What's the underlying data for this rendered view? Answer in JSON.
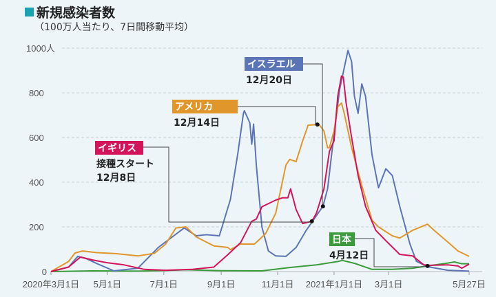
{
  "chart_data": {
    "type": "line",
    "title": "新規感染者数",
    "subtitle": "（100万人当たり、7日間移動平均）",
    "ylim": [
      0,
      1000
    ],
    "yticks": [
      "0",
      "200",
      "400",
      "600",
      "800",
      "1000人"
    ],
    "ytick_values": [
      0,
      200,
      400,
      600,
      800,
      1000
    ],
    "xlim": [
      "2020-03-01",
      "2021-05-27"
    ],
    "xticks": [
      "2020年3月1日",
      "5月1日",
      "7月1日",
      "9月1日",
      "11月1日",
      "2021年1月1日",
      "3月1日",
      "5月27日"
    ],
    "xtick_dates": [
      "2020-03-01",
      "2020-05-01",
      "2020-07-01",
      "2020-09-01",
      "2020-11-01",
      "2021-01-01",
      "2021-03-01",
      "2021-05-27"
    ],
    "grid": true,
    "series": [
      {
        "name": "イスラエル",
        "color": "#5b74b5",
        "annotation": "12月20日",
        "marker_date": "2020-12-20",
        "points": [
          [
            "2020-03-01",
            0
          ],
          [
            "2020-03-20",
            20
          ],
          [
            "2020-03-30",
            68
          ],
          [
            "2020-04-08",
            58
          ],
          [
            "2020-04-20",
            35
          ],
          [
            "2020-05-08",
            3
          ],
          [
            "2020-06-03",
            15
          ],
          [
            "2020-06-25",
            108
          ],
          [
            "2020-07-23",
            195
          ],
          [
            "2020-08-05",
            160
          ],
          [
            "2020-08-16",
            165
          ],
          [
            "2020-08-30",
            160
          ],
          [
            "2020-09-11",
            323
          ],
          [
            "2020-09-19",
            530
          ],
          [
            "2020-09-25",
            707
          ],
          [
            "2020-09-26",
            720
          ],
          [
            "2020-10-02",
            665
          ],
          [
            "2020-10-04",
            570
          ],
          [
            "2020-10-06",
            660
          ],
          [
            "2020-10-09",
            475
          ],
          [
            "2020-10-15",
            200
          ],
          [
            "2020-10-22",
            92
          ],
          [
            "2020-10-30",
            70
          ],
          [
            "2020-11-10",
            68
          ],
          [
            "2020-11-21",
            108
          ],
          [
            "2020-12-02",
            185
          ],
          [
            "2020-12-20",
            292
          ],
          [
            "2020-12-25",
            370
          ],
          [
            "2021-01-01",
            615
          ],
          [
            "2021-01-07",
            815
          ],
          [
            "2021-01-16",
            990
          ],
          [
            "2021-01-20",
            940
          ],
          [
            "2021-01-23",
            785
          ],
          [
            "2021-01-27",
            708
          ],
          [
            "2021-01-31",
            840
          ],
          [
            "2021-02-04",
            785
          ],
          [
            "2021-02-11",
            523
          ],
          [
            "2021-02-18",
            375
          ],
          [
            "2021-02-26",
            460
          ],
          [
            "2021-03-05",
            430
          ],
          [
            "2021-03-13",
            292
          ],
          [
            "2021-03-24",
            123
          ],
          [
            "2021-03-31",
            46
          ],
          [
            "2021-04-12",
            22
          ],
          [
            "2021-05-04",
            6
          ],
          [
            "2021-05-27",
            2
          ]
        ]
      },
      {
        "name": "アメリカ",
        "color": "#e0962a",
        "annotation": "12月14日",
        "marker_date": "2020-12-14",
        "points": [
          [
            "2020-03-01",
            0
          ],
          [
            "2020-03-20",
            45
          ],
          [
            "2020-03-27",
            83
          ],
          [
            "2020-04-04",
            92
          ],
          [
            "2020-04-19",
            85
          ],
          [
            "2020-05-11",
            80
          ],
          [
            "2020-06-03",
            70
          ],
          [
            "2020-06-21",
            82
          ],
          [
            "2020-07-03",
            123
          ],
          [
            "2020-07-14",
            195
          ],
          [
            "2020-07-25",
            200
          ],
          [
            "2020-08-05",
            155
          ],
          [
            "2020-08-24",
            115
          ],
          [
            "2020-09-08",
            108
          ],
          [
            "2020-09-11",
            98
          ],
          [
            "2020-09-22",
            123
          ],
          [
            "2020-10-07",
            123
          ],
          [
            "2020-10-19",
            170
          ],
          [
            "2020-10-30",
            262
          ],
          [
            "2020-11-10",
            477
          ],
          [
            "2020-11-14",
            502
          ],
          [
            "2020-11-21",
            492
          ],
          [
            "2020-11-28",
            585
          ],
          [
            "2020-12-04",
            655
          ],
          [
            "2020-12-14",
            658
          ],
          [
            "2020-12-15",
            662
          ],
          [
            "2020-12-21",
            630
          ],
          [
            "2020-12-25",
            554
          ],
          [
            "2020-12-27",
            554
          ],
          [
            "2021-01-01",
            630
          ],
          [
            "2021-01-05",
            738
          ],
          [
            "2021-01-09",
            754
          ],
          [
            "2021-01-12",
            708
          ],
          [
            "2021-01-20",
            554
          ],
          [
            "2021-01-31",
            385
          ],
          [
            "2021-02-11",
            230
          ],
          [
            "2021-02-18",
            200
          ],
          [
            "2021-03-05",
            160
          ],
          [
            "2021-03-13",
            150
          ],
          [
            "2021-03-27",
            185
          ],
          [
            "2021-04-12",
            212
          ],
          [
            "2021-04-19",
            185
          ],
          [
            "2021-05-04",
            132
          ],
          [
            "2021-05-15",
            92
          ],
          [
            "2021-05-27",
            68
          ]
        ]
      },
      {
        "name": "イギリス",
        "color": "#d4145a",
        "annotation": "接種スタート\n12月8日",
        "annotation_lines": [
          "接種スタート",
          "12月8日"
        ],
        "marker_date": "2020-12-08",
        "points": [
          [
            "2020-03-01",
            0
          ],
          [
            "2020-03-20",
            20
          ],
          [
            "2020-03-30",
            55
          ],
          [
            "2020-04-02",
            65
          ],
          [
            "2020-04-15",
            52
          ],
          [
            "2020-04-30",
            40
          ],
          [
            "2020-05-19",
            30
          ],
          [
            "2020-06-10",
            10
          ],
          [
            "2020-07-03",
            6
          ],
          [
            "2020-08-01",
            10
          ],
          [
            "2020-08-24",
            20
          ],
          [
            "2020-09-08",
            75
          ],
          [
            "2020-09-22",
            130
          ],
          [
            "2020-10-04",
            225
          ],
          [
            "2020-10-09",
            235
          ],
          [
            "2020-10-15",
            290
          ],
          [
            "2020-10-30",
            320
          ],
          [
            "2020-11-06",
            330
          ],
          [
            "2020-11-12",
            330
          ],
          [
            "2020-11-15",
            370
          ],
          [
            "2020-11-21",
            277
          ],
          [
            "2020-11-28",
            215
          ],
          [
            "2020-12-08",
            225
          ],
          [
            "2020-12-13",
            262
          ],
          [
            "2020-12-21",
            370
          ],
          [
            "2020-12-27",
            538
          ],
          [
            "2021-01-01",
            585
          ],
          [
            "2021-01-05",
            785
          ],
          [
            "2021-01-09",
            875
          ],
          [
            "2021-01-11",
            870
          ],
          [
            "2021-01-14",
            755
          ],
          [
            "2021-01-20",
            600
          ],
          [
            "2021-01-27",
            430
          ],
          [
            "2021-02-04",
            292
          ],
          [
            "2021-02-15",
            185
          ],
          [
            "2021-02-26",
            138
          ],
          [
            "2021-03-13",
            77
          ],
          [
            "2021-03-27",
            70
          ],
          [
            "2021-04-08",
            30
          ],
          [
            "2021-04-15",
            28
          ],
          [
            "2021-05-04",
            30
          ],
          [
            "2021-05-15",
            25
          ],
          [
            "2021-05-19",
            15
          ],
          [
            "2021-05-27",
            33
          ]
        ]
      },
      {
        "name": "日本",
        "color": "#3b9a3c",
        "annotation": "4月12日",
        "marker_date": "2021-04-12",
        "points": [
          [
            "2020-03-01",
            0
          ],
          [
            "2020-04-15",
            3
          ],
          [
            "2020-06-03",
            2
          ],
          [
            "2020-07-03",
            5
          ],
          [
            "2020-07-25",
            8
          ],
          [
            "2020-08-31",
            4
          ],
          [
            "2020-10-15",
            3
          ],
          [
            "2020-11-14",
            18
          ],
          [
            "2020-12-13",
            30
          ],
          [
            "2021-01-05",
            45
          ],
          [
            "2021-01-10",
            50
          ],
          [
            "2021-01-23",
            37
          ],
          [
            "2021-02-11",
            10
          ],
          [
            "2021-03-05",
            10
          ],
          [
            "2021-03-27",
            15
          ],
          [
            "2021-04-12",
            25
          ],
          [
            "2021-05-04",
            38
          ],
          [
            "2021-05-11",
            43
          ],
          [
            "2021-05-19",
            35
          ],
          [
            "2021-05-27",
            35
          ]
        ]
      }
    ]
  }
}
